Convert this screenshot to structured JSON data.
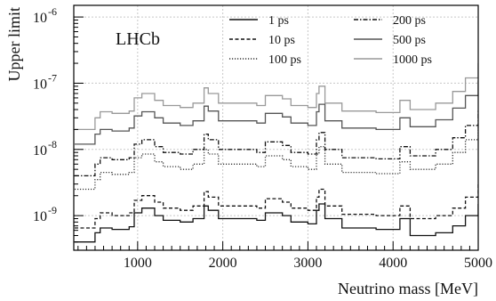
{
  "chart_data": {
    "type": "line",
    "experiment_label": "LHCb",
    "xlabel": "Neutrino mass [MeV]",
    "ylabel": "Upper limit",
    "xlim": [
      250,
      5000
    ],
    "ylim": [
      3e-10,
      1.5e-06
    ],
    "yscale": "log",
    "grid": true,
    "legend_position": "top-right",
    "x_ticks": [
      1000,
      2000,
      3000,
      4000,
      5000
    ],
    "x_tick_labels": [
      "1000",
      "2000",
      "3000",
      "4000",
      "5000"
    ],
    "y_ticks": [
      1e-09,
      1e-08,
      1e-07,
      1e-06
    ],
    "y_tick_labels": [
      {
        "base": "10",
        "exp": "-9"
      },
      {
        "base": "10",
        "exp": "-8"
      },
      {
        "base": "10",
        "exp": "-7"
      },
      {
        "base": "10",
        "exp": "-6"
      }
    ],
    "series": [
      {
        "name": "1 ps",
        "color": "#111111",
        "dash": "solid",
        "x": [
          260,
          500,
          560,
          700,
          900,
          960,
          1050,
          1200,
          1300,
          1500,
          1650,
          1780,
          1830,
          1950,
          2200,
          2400,
          2500,
          2700,
          2800,
          3000,
          3100,
          3130,
          3200,
          3400,
          3800,
          4080,
          4200,
          4500,
          4700,
          4850,
          5000
        ],
        "y": [
          4e-10,
          5.5e-10,
          6.5e-10,
          6.2e-10,
          6.8e-10,
          1.1e-09,
          1.3e-09,
          1e-09,
          8.5e-10,
          8e-10,
          9e-10,
          1.4e-09,
          1.2e-09,
          9e-10,
          9e-10,
          8.5e-10,
          1.1e-09,
          1e-09,
          8e-10,
          7.5e-10,
          1.2e-09,
          1.5e-09,
          9e-10,
          6.5e-10,
          6.2e-10,
          9e-10,
          5e-10,
          5.5e-10,
          7e-10,
          1e-09,
          1.5e-09
        ]
      },
      {
        "name": "10 ps",
        "color": "#111111",
        "dash": "dashed",
        "x": [
          260,
          500,
          560,
          700,
          900,
          960,
          1050,
          1200,
          1300,
          1500,
          1650,
          1780,
          1830,
          1950,
          2200,
          2400,
          2500,
          2700,
          2800,
          3000,
          3100,
          3130,
          3200,
          3400,
          3800,
          4080,
          4200,
          4500,
          4700,
          4850,
          5000
        ],
        "y": [
          6.5e-10,
          9e-10,
          1.1e-09,
          1e-09,
          1.1e-09,
          1.7e-09,
          2e-09,
          1.6e-09,
          1.3e-09,
          1.2e-09,
          1.4e-09,
          2.3e-09,
          1.9e-09,
          1.4e-09,
          1.4e-09,
          1.3e-09,
          1.8e-09,
          1.6e-09,
          1.3e-09,
          1.2e-09,
          1.9e-09,
          2.5e-09,
          1.4e-09,
          1.05e-09,
          1e-09,
          1.4e-09,
          9e-10,
          1e-09,
          1.3e-09,
          1.9e-09,
          3e-09
        ]
      },
      {
        "name": "100 ps",
        "color": "#333333",
        "dash": "dotted",
        "x": [
          260,
          500,
          560,
          700,
          900,
          960,
          1050,
          1200,
          1300,
          1500,
          1650,
          1780,
          1830,
          1950,
          2200,
          2400,
          2500,
          2700,
          2800,
          3000,
          3100,
          3130,
          3200,
          3400,
          3800,
          4080,
          4200,
          4500,
          4700,
          4850,
          5000
        ],
        "y": [
          2.5e-09,
          3.5e-09,
          4.5e-09,
          4.2e-09,
          4.5e-09,
          7.5e-09,
          8.5e-09,
          6.5e-09,
          5.5e-09,
          5e-09,
          6e-09,
          1e-08,
          8.5e-09,
          6e-09,
          6e-09,
          5.5e-09,
          8e-09,
          7e-09,
          5.5e-09,
          5e-09,
          8.5e-09,
          1.1e-08,
          6e-09,
          4.5e-09,
          4.3e-09,
          6.5e-09,
          5e-09,
          6e-09,
          9e-09,
          1.4e-08,
          2.5e-08
        ]
      },
      {
        "name": "200 ps",
        "color": "#111111",
        "dash": "dashdot",
        "x": [
          260,
          500,
          560,
          700,
          900,
          960,
          1050,
          1200,
          1300,
          1500,
          1650,
          1780,
          1830,
          1950,
          2200,
          2400,
          2500,
          2700,
          2800,
          3000,
          3100,
          3130,
          3200,
          3400,
          3800,
          4080,
          4200,
          4500,
          4700,
          4850,
          5000
        ],
        "y": [
          4e-09,
          6e-09,
          7.5e-09,
          7e-09,
          7.5e-09,
          1.2e-08,
          1.4e-08,
          1.1e-08,
          9e-09,
          8.5e-09,
          1e-08,
          1.7e-08,
          1.4e-08,
          1e-08,
          1e-08,
          9e-09,
          1.3e-08,
          1.15e-08,
          9e-09,
          8.5e-09,
          1.4e-08,
          1.8e-08,
          1e-08,
          7.5e-09,
          7.2e-09,
          1.1e-08,
          8e-09,
          1e-08,
          1.5e-08,
          2.3e-08,
          4e-08
        ]
      },
      {
        "name": "500 ps",
        "color": "#555555",
        "dash": "solid",
        "x": [
          260,
          500,
          560,
          700,
          900,
          960,
          1050,
          1200,
          1300,
          1500,
          1650,
          1780,
          1830,
          1950,
          2200,
          2400,
          2500,
          2700,
          2800,
          3000,
          3100,
          3130,
          3200,
          3400,
          3800,
          4080,
          4200,
          4500,
          4700,
          4850,
          5000
        ],
        "y": [
          1.2e-08,
          1.7e-08,
          2e-08,
          1.9e-08,
          2.1e-08,
          3.2e-08,
          3.7e-08,
          3e-08,
          2.5e-08,
          2.3e-08,
          2.7e-08,
          4.5e-08,
          3.8e-08,
          2.7e-08,
          2.7e-08,
          2.5e-08,
          3.5e-08,
          3.1e-08,
          2.5e-08,
          2.3e-08,
          3.7e-08,
          4.8e-08,
          2.7e-08,
          2.1e-08,
          2e-08,
          3e-08,
          2.2e-08,
          2.8e-08,
          4.2e-08,
          6.5e-08,
          1.1e-07
        ]
      },
      {
        "name": "1000 ps",
        "color": "#999999",
        "dash": "solid",
        "x": [
          260,
          500,
          560,
          700,
          900,
          960,
          1050,
          1200,
          1300,
          1500,
          1650,
          1780,
          1830,
          1950,
          2200,
          2400,
          2500,
          2700,
          2800,
          3000,
          3100,
          3130,
          3200,
          3400,
          3800,
          4080,
          4200,
          4500,
          4700,
          4850,
          5000
        ],
        "y": [
          2e-08,
          3e-08,
          3.7e-08,
          3.5e-08,
          3.8e-08,
          6e-08,
          7e-08,
          5.5e-08,
          4.6e-08,
          4.3e-08,
          5e-08,
          8.5e-08,
          7e-08,
          5e-08,
          5e-08,
          4.6e-08,
          6.5e-08,
          5.8e-08,
          4.6e-08,
          4.3e-08,
          7e-08,
          9e-08,
          5e-08,
          3.8e-08,
          3.6e-08,
          5.5e-08,
          4e-08,
          5e-08,
          7.5e-08,
          1.2e-07,
          2e-07
        ]
      }
    ]
  }
}
